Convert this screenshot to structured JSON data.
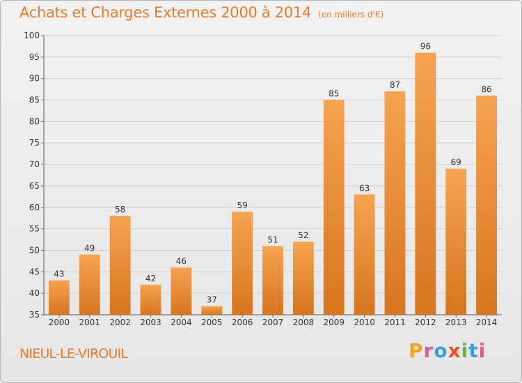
{
  "header": {
    "title": "Achats et Charges Externes 2000 à 2014",
    "unit": "(en milliers d'€)"
  },
  "footer": {
    "commune": "NIEUL-LE-VIROUIL",
    "brand": "Proxiti"
  },
  "colors": {
    "accent": "#e87a2a",
    "bar_light": "#f6a350",
    "bar_dark": "#d8751e",
    "logo_letters": [
      "#f2a51a",
      "#e35a9c",
      "#3aa0d8",
      "#e8501c",
      "#6ab23e",
      "#3aa0d8",
      "#e35a9c"
    ]
  },
  "chart_data": {
    "type": "bar",
    "title": "Achats et Charges Externes 2000 à 2014",
    "subtitle": "(en milliers d'€)",
    "categories": [
      "2000",
      "2001",
      "2002",
      "2003",
      "2004",
      "2005",
      "2006",
      "2007",
      "2008",
      "2009",
      "2010",
      "2011",
      "2012",
      "2013",
      "2014"
    ],
    "values": [
      43,
      49,
      58,
      42,
      46,
      37,
      59,
      51,
      52,
      85,
      63,
      87,
      96,
      69,
      86
    ],
    "ylim": [
      35,
      100
    ],
    "yticks": [
      35,
      40,
      45,
      50,
      55,
      60,
      65,
      70,
      75,
      80,
      85,
      90,
      95,
      100
    ],
    "grid": true,
    "data_labels": true
  }
}
